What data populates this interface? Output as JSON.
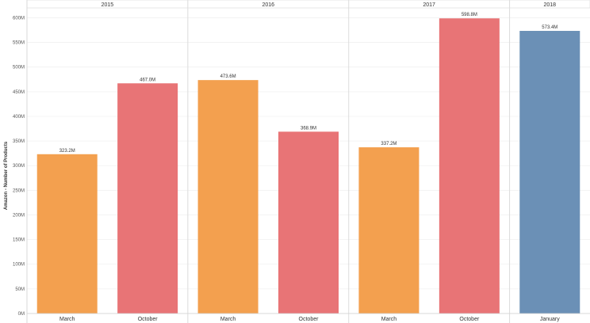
{
  "chart_data": {
    "type": "bar",
    "ylabel": "Amazon - Number of Products",
    "ylim": [
      0,
      620
    ],
    "y_ticks": [
      "0M",
      "50M",
      "100M",
      "150M",
      "200M",
      "250M",
      "300M",
      "350M",
      "400M",
      "450M",
      "500M",
      "550M",
      "600M"
    ],
    "y_tick_values": [
      0,
      50,
      100,
      150,
      200,
      250,
      300,
      350,
      400,
      450,
      500,
      550,
      600
    ],
    "groups": [
      {
        "year": "2015",
        "bars": [
          {
            "category": "March",
            "value": 323.2,
            "label": "323.2M",
            "color": "#f3a04f"
          },
          {
            "category": "October",
            "value": 467.0,
            "label": "467.0M",
            "color": "#e87476"
          }
        ]
      },
      {
        "year": "2016",
        "bars": [
          {
            "category": "March",
            "value": 473.6,
            "label": "473.6M",
            "color": "#f3a04f"
          },
          {
            "category": "October",
            "value": 368.9,
            "label": "368.9M",
            "color": "#e87476"
          }
        ]
      },
      {
        "year": "2017",
        "bars": [
          {
            "category": "March",
            "value": 337.2,
            "label": "337.2M",
            "color": "#f3a04f"
          },
          {
            "category": "October",
            "value": 598.8,
            "label": "598.8M",
            "color": "#e87476"
          }
        ]
      },
      {
        "year": "2018",
        "bars": [
          {
            "category": "January",
            "value": 573.4,
            "label": "573.4M",
            "color": "#6b90b6"
          }
        ]
      }
    ],
    "grid": true
  }
}
